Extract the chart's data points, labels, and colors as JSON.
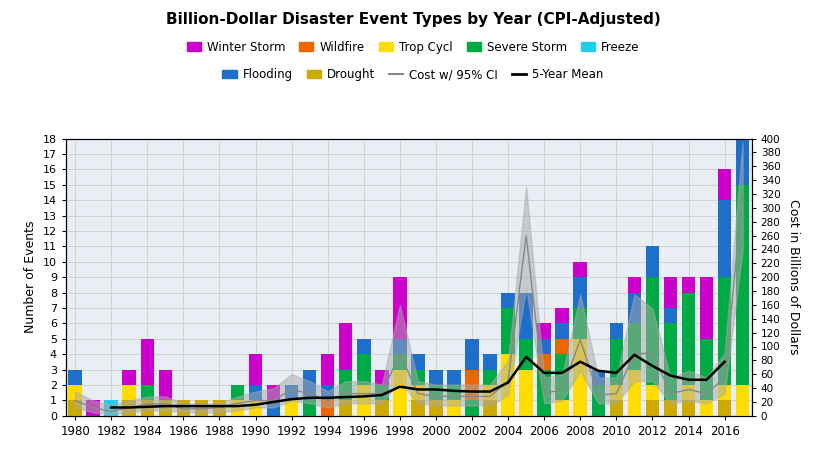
{
  "title": "Billion-Dollar Disaster Event Types by Year (CPI-Adjusted)",
  "ylabel_left": "Number of Events",
  "ylabel_right": "Cost in Billions of Dollars",
  "ylim_left": [
    0,
    18
  ],
  "ylim_right": [
    0,
    400
  ],
  "years": [
    1980,
    1981,
    1982,
    1983,
    1984,
    1985,
    1986,
    1987,
    1988,
    1989,
    1990,
    1991,
    1992,
    1993,
    1994,
    1995,
    1996,
    1997,
    1998,
    1999,
    2000,
    2001,
    2002,
    2003,
    2004,
    2005,
    2006,
    2007,
    2008,
    2009,
    2010,
    2011,
    2012,
    2013,
    2014,
    2015,
    2016,
    2017
  ],
  "stack_order": [
    "Drought",
    "Trop Cycl",
    "Severe Storm",
    "Wildfire",
    "Flooding",
    "Freeze",
    "Winter Storm"
  ],
  "colors": {
    "Flooding": "#1e6fcc",
    "Drought": "#ccaa00",
    "Severe Storm": "#00aa44",
    "Trop Cycl": "#ffdd00",
    "Wildfire": "#ee6600",
    "Winter Storm": "#cc00cc",
    "Freeze": "#22ccee"
  },
  "data": {
    "Flooding": [
      1,
      0,
      0,
      0,
      0,
      0,
      0,
      0,
      0,
      0,
      1,
      1,
      1,
      2,
      1,
      0,
      1,
      0,
      1,
      1,
      1,
      1,
      2,
      1,
      1,
      3,
      1,
      1,
      2,
      1,
      1,
      2,
      2,
      1,
      0,
      0,
      5,
      4
    ],
    "Drought": [
      1,
      0,
      0,
      1,
      1,
      1,
      1,
      1,
      1,
      0,
      0,
      0,
      0,
      0,
      0,
      1,
      0,
      1,
      0,
      1,
      1,
      0,
      0,
      1,
      0,
      0,
      0,
      0,
      0,
      0,
      1,
      0,
      1,
      1,
      1,
      0,
      1,
      0
    ],
    "Severe Storm": [
      0,
      0,
      0,
      0,
      1,
      0,
      0,
      0,
      0,
      1,
      0,
      0,
      0,
      1,
      0,
      2,
      2,
      1,
      1,
      1,
      1,
      1,
      1,
      1,
      3,
      2,
      3,
      3,
      2,
      2,
      3,
      3,
      7,
      5,
      6,
      4,
      7,
      13
    ],
    "Trop Cycl": [
      1,
      0,
      0,
      1,
      0,
      0,
      0,
      0,
      0,
      1,
      1,
      0,
      1,
      0,
      0,
      0,
      2,
      0,
      3,
      1,
      0,
      1,
      0,
      1,
      4,
      3,
      0,
      1,
      5,
      0,
      1,
      3,
      1,
      0,
      1,
      1,
      1,
      2
    ],
    "Wildfire": [
      0,
      0,
      0,
      0,
      0,
      0,
      0,
      0,
      0,
      0,
      0,
      0,
      0,
      0,
      1,
      0,
      0,
      0,
      0,
      0,
      0,
      0,
      2,
      0,
      0,
      0,
      1,
      1,
      0,
      0,
      0,
      0,
      0,
      0,
      0,
      0,
      0,
      0
    ],
    "Winter Storm": [
      0,
      1,
      0,
      1,
      3,
      2,
      0,
      0,
      0,
      0,
      2,
      1,
      0,
      0,
      2,
      3,
      0,
      1,
      4,
      0,
      0,
      0,
      0,
      0,
      0,
      0,
      1,
      1,
      1,
      0,
      0,
      1,
      0,
      2,
      1,
      4,
      2,
      1
    ],
    "Freeze": [
      0,
      0,
      1,
      0,
      0,
      0,
      0,
      0,
      0,
      0,
      0,
      0,
      0,
      0,
      0,
      0,
      0,
      0,
      0,
      0,
      0,
      0,
      0,
      0,
      0,
      0,
      0,
      0,
      0,
      0,
      0,
      0,
      0,
      0,
      0,
      0,
      0,
      0
    ]
  },
  "cost_mean": [
    22,
    12,
    6,
    12,
    17,
    17,
    10,
    10,
    12,
    18,
    22,
    22,
    38,
    32,
    22,
    32,
    32,
    32,
    90,
    32,
    28,
    28,
    28,
    28,
    50,
    260,
    32,
    38,
    110,
    30,
    32,
    90,
    90,
    32,
    38,
    32,
    55,
    320
  ],
  "cost_ci_upper": [
    35,
    22,
    16,
    22,
    28,
    28,
    18,
    18,
    18,
    28,
    35,
    40,
    60,
    50,
    35,
    50,
    50,
    45,
    160,
    50,
    45,
    45,
    45,
    45,
    80,
    330,
    55,
    60,
    175,
    55,
    55,
    175,
    155,
    55,
    65,
    55,
    90,
    395
  ],
  "cost_ci_lower": [
    12,
    5,
    2,
    5,
    8,
    8,
    5,
    5,
    5,
    8,
    12,
    12,
    22,
    18,
    12,
    18,
    18,
    18,
    50,
    18,
    15,
    15,
    15,
    15,
    30,
    185,
    18,
    22,
    65,
    18,
    18,
    50,
    50,
    18,
    22,
    18,
    32,
    240
  ],
  "five_year_mean_x": [
    2,
    3,
    4,
    5,
    6,
    7,
    8,
    9,
    10,
    11,
    12,
    13,
    14,
    15,
    16,
    17,
    18,
    19,
    20,
    21,
    22,
    23,
    24,
    25,
    26,
    27,
    28,
    29,
    30,
    31,
    32,
    33,
    34,
    35,
    36
  ],
  "five_year_mean": [
    12,
    12,
    13,
    14,
    14,
    14,
    14,
    14,
    16,
    20,
    24,
    26,
    26,
    27,
    28,
    30,
    42,
    38,
    38,
    36,
    35,
    35,
    48,
    85,
    62,
    62,
    78,
    65,
    62,
    88,
    72,
    58,
    52,
    52,
    78
  ],
  "legend_row1": [
    "Winter Storm",
    "Wildfire",
    "Trop Cycl",
    "Severe Storm",
    "Freeze"
  ],
  "legend_row2": [
    "Flooding",
    "Drought"
  ],
  "background_color": "#e8eef4",
  "grid_color": "#c8c8c8",
  "bar_width": 0.75
}
